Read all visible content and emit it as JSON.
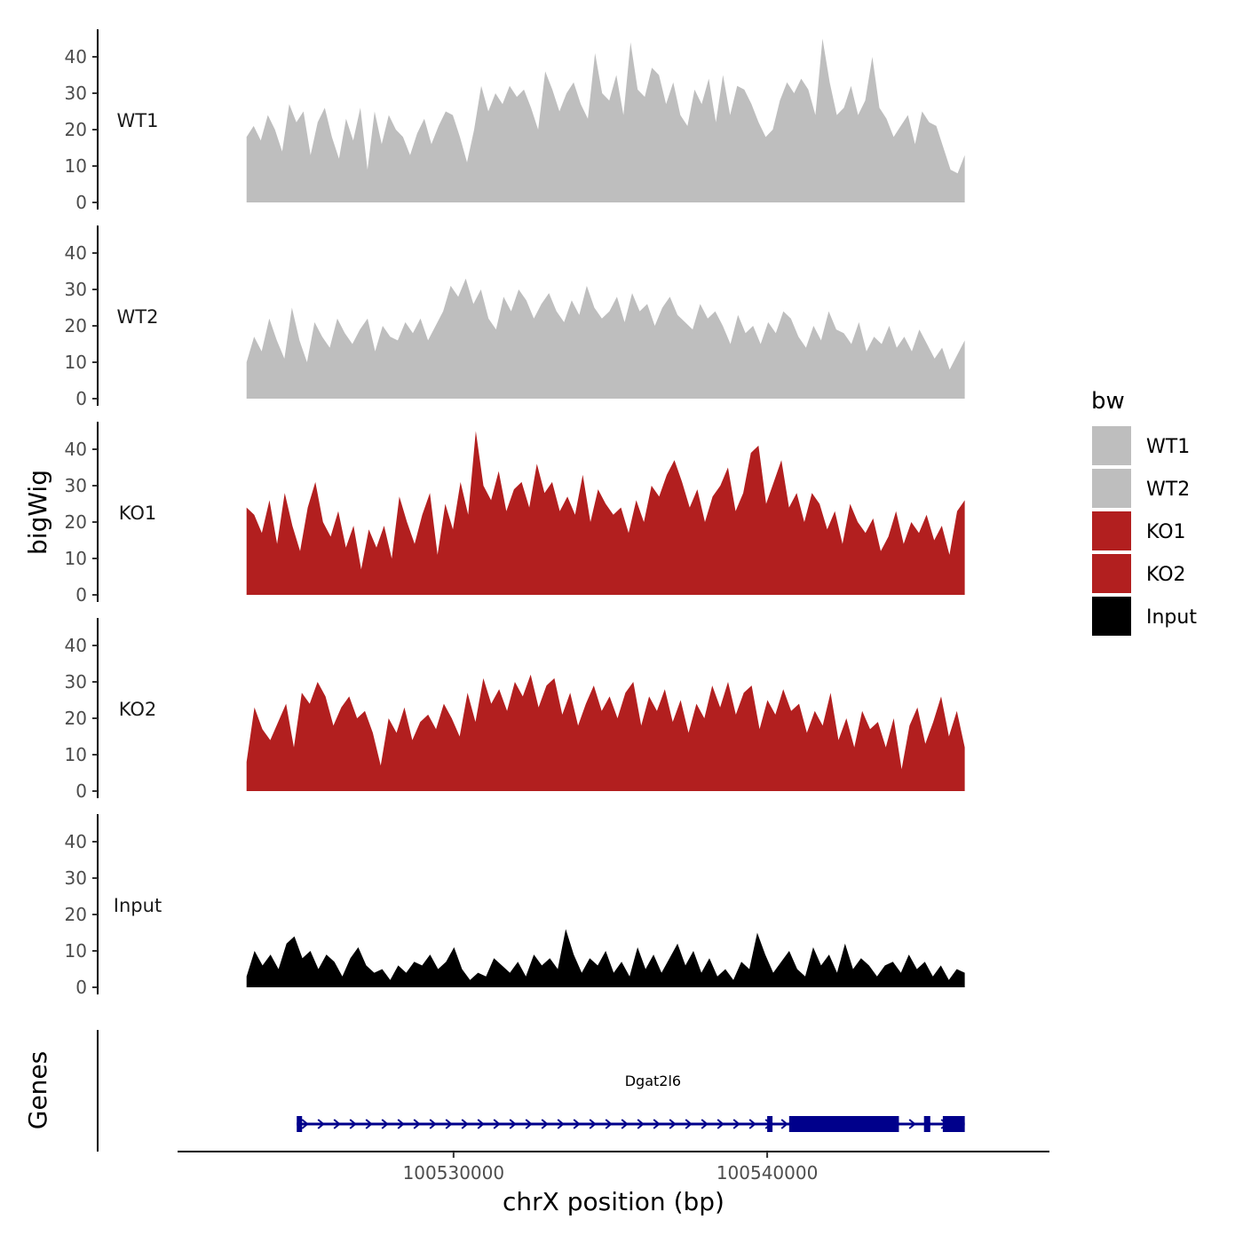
{
  "chart_data": {
    "type": "area",
    "title": "",
    "ylabel": "bigWig",
    "xlabel": "chrX position (bp)",
    "xlim": [
      100521200,
      100549000
    ],
    "region": [
      100523400,
      100546300
    ],
    "ylim": [
      0,
      45
    ],
    "yticks": [
      0,
      10,
      20,
      30,
      40
    ],
    "xticks": [
      100530000,
      100540000
    ],
    "xtick_labels": [
      "100530000",
      "100540000"
    ],
    "legend": {
      "title": "bw",
      "position": "right",
      "entries": [
        {
          "label": "WT1",
          "color": "#bebebe"
        },
        {
          "label": "WT2",
          "color": "#bebebe"
        },
        {
          "label": "KO1",
          "color": "#b21f1f"
        },
        {
          "label": "KO2",
          "color": "#b21f1f"
        },
        {
          "label": "Input",
          "color": "#000000"
        }
      ]
    },
    "series": [
      {
        "name": "WT1",
        "color": "#bebebe",
        "values": [
          18,
          21,
          17,
          24,
          20,
          14,
          27,
          22,
          25,
          13,
          22,
          26,
          18,
          12,
          23,
          17,
          26,
          9,
          25,
          16,
          24,
          20,
          18,
          13,
          19,
          23,
          16,
          21,
          25,
          24,
          18,
          11,
          20,
          32,
          25,
          30,
          27,
          32,
          29,
          31,
          26,
          20,
          36,
          31,
          25,
          30,
          33,
          27,
          23,
          41,
          30,
          28,
          35,
          24,
          44,
          31,
          29,
          37,
          35,
          27,
          33,
          24,
          21,
          31,
          27,
          34,
          22,
          35,
          24,
          32,
          31,
          27,
          22,
          18,
          20,
          28,
          33,
          30,
          34,
          31,
          24,
          45,
          33,
          24,
          26,
          32,
          24,
          28,
          40,
          26,
          23,
          18,
          21,
          24,
          16,
          25,
          22,
          21,
          15,
          9,
          8,
          13
        ]
      },
      {
        "name": "WT2",
        "color": "#bebebe",
        "values": [
          10,
          17,
          13,
          22,
          16,
          11,
          25,
          16,
          10,
          21,
          17,
          14,
          22,
          18,
          15,
          19,
          22,
          13,
          20,
          17,
          16,
          21,
          18,
          22,
          16,
          20,
          24,
          31,
          28,
          33,
          26,
          30,
          22,
          19,
          28,
          24,
          30,
          27,
          22,
          26,
          29,
          24,
          21,
          27,
          23,
          31,
          25,
          22,
          24,
          28,
          21,
          29,
          24,
          26,
          20,
          25,
          28,
          23,
          21,
          19,
          26,
          22,
          24,
          20,
          15,
          23,
          18,
          20,
          15,
          21,
          18,
          24,
          22,
          17,
          14,
          20,
          16,
          24,
          19,
          18,
          15,
          21,
          13,
          17,
          15,
          20,
          14,
          17,
          13,
          19,
          15,
          11,
          14,
          8,
          12,
          16
        ]
      },
      {
        "name": "KO1",
        "color": "#b21f1f",
        "values": [
          24,
          22,
          17,
          26,
          14,
          28,
          19,
          12,
          24,
          31,
          20,
          16,
          23,
          13,
          19,
          7,
          18,
          13,
          19,
          10,
          27,
          20,
          14,
          22,
          28,
          11,
          25,
          18,
          31,
          22,
          45,
          30,
          26,
          34,
          23,
          29,
          31,
          24,
          36,
          28,
          31,
          23,
          27,
          22,
          33,
          20,
          29,
          25,
          22,
          24,
          17,
          26,
          20,
          30,
          27,
          33,
          37,
          31,
          24,
          29,
          20,
          27,
          30,
          35,
          23,
          28,
          39,
          41,
          25,
          31,
          37,
          24,
          28,
          20,
          28,
          25,
          18,
          23,
          14,
          25,
          20,
          17,
          21,
          12,
          16,
          23,
          14,
          20,
          17,
          22,
          15,
          19,
          11,
          23,
          26
        ]
      },
      {
        "name": "KO2",
        "color": "#b21f1f",
        "values": [
          8,
          23,
          17,
          14,
          19,
          24,
          12,
          27,
          24,
          30,
          26,
          18,
          23,
          26,
          20,
          22,
          16,
          7,
          20,
          16,
          23,
          14,
          19,
          21,
          17,
          24,
          20,
          15,
          27,
          19,
          31,
          24,
          28,
          22,
          30,
          26,
          32,
          23,
          29,
          31,
          21,
          27,
          18,
          24,
          29,
          22,
          26,
          20,
          27,
          30,
          18,
          26,
          22,
          28,
          19,
          25,
          16,
          24,
          20,
          29,
          23,
          30,
          21,
          27,
          29,
          17,
          25,
          21,
          28,
          22,
          24,
          16,
          22,
          18,
          27,
          14,
          20,
          12,
          22,
          17,
          19,
          12,
          20,
          6,
          18,
          23,
          13,
          19,
          26,
          15,
          22,
          12
        ]
      },
      {
        "name": "Input",
        "color": "#000000",
        "values": [
          3,
          10,
          6,
          9,
          5,
          12,
          14,
          8,
          10,
          5,
          9,
          7,
          3,
          8,
          11,
          6,
          4,
          5,
          2,
          6,
          4,
          7,
          6,
          9,
          5,
          7,
          11,
          5,
          2,
          4,
          3,
          8,
          6,
          4,
          7,
          3,
          9,
          6,
          8,
          5,
          16,
          9,
          4,
          8,
          6,
          10,
          4,
          7,
          3,
          11,
          5,
          9,
          4,
          8,
          12,
          6,
          10,
          4,
          8,
          3,
          5,
          2,
          7,
          5,
          15,
          9,
          4,
          7,
          10,
          5,
          3,
          11,
          6,
          9,
          4,
          12,
          5,
          8,
          6,
          3,
          6,
          7,
          4,
          9,
          5,
          7,
          3,
          6,
          2,
          5,
          4
        ]
      }
    ],
    "genes": {
      "ylabel": "Genes",
      "name": "Dgat2l6",
      "strand": "+",
      "start": 100525000,
      "end": 100546300,
      "exons": [
        [
          100525000,
          100525150
        ],
        [
          100540000,
          100540150
        ],
        [
          100540700,
          100544200
        ],
        [
          100545000,
          100545200
        ],
        [
          100545600,
          100546300
        ]
      ]
    }
  }
}
